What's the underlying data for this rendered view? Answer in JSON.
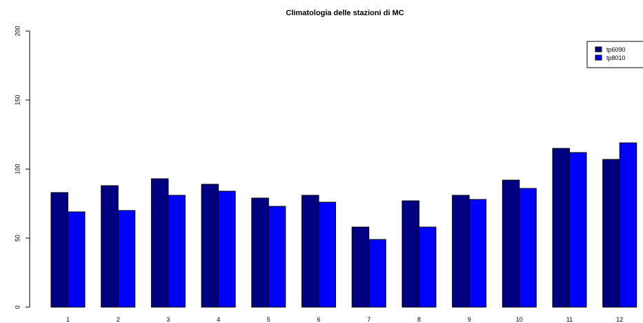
{
  "chart_data": {
    "type": "bar",
    "title": "Climatologia delle stazioni di MC",
    "xlabel": "",
    "ylabel": "",
    "categories": [
      "1",
      "2",
      "3",
      "4",
      "5",
      "6",
      "7",
      "8",
      "9",
      "10",
      "11",
      "12"
    ],
    "series": [
      {
        "name": "tp6090",
        "color": "#000080",
        "values": [
          83,
          88,
          93,
          89,
          79,
          81,
          58,
          77,
          81,
          92,
          115,
          107
        ]
      },
      {
        "name": "tp8010",
        "color": "#0000ff",
        "values": [
          69,
          70,
          81,
          84,
          73,
          76,
          49,
          58,
          78,
          86,
          112,
          119
        ]
      }
    ],
    "ylim": [
      0,
      200
    ],
    "yticks": [
      0,
      50,
      100,
      150,
      200
    ],
    "grid": false,
    "legend_position": "top-right"
  }
}
